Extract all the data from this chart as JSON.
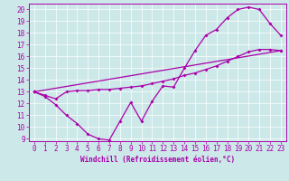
{
  "xlabel": "Windchill (Refroidissement éolien,°C)",
  "background_color": "#cce8e8",
  "grid_color": "#ffffff",
  "line_color": "#aa00aa",
  "xlim": [
    -0.5,
    23.5
  ],
  "ylim": [
    8.8,
    20.5
  ],
  "xticks": [
    0,
    1,
    2,
    3,
    4,
    5,
    6,
    7,
    8,
    9,
    10,
    11,
    12,
    13,
    14,
    15,
    16,
    17,
    18,
    19,
    20,
    21,
    22,
    23
  ],
  "yticks": [
    9,
    10,
    11,
    12,
    13,
    14,
    15,
    16,
    17,
    18,
    19,
    20
  ],
  "curve1_x": [
    0,
    1,
    2,
    3,
    4,
    5,
    6,
    7,
    8,
    9,
    10,
    11,
    12,
    13,
    14,
    15,
    16,
    17,
    18,
    19,
    20,
    21,
    22,
    23
  ],
  "curve1_y": [
    13,
    12.6,
    11.9,
    11.0,
    10.3,
    9.4,
    9.0,
    8.9,
    10.5,
    12.1,
    10.5,
    12.2,
    13.5,
    13.4,
    15.0,
    16.5,
    17.8,
    18.3,
    19.3,
    20.0,
    20.2,
    20.0,
    18.8,
    17.8
  ],
  "curve2_x": [
    0,
    1,
    2,
    3,
    4,
    5,
    6,
    7,
    8,
    9,
    10,
    11,
    12,
    13,
    14,
    15,
    16,
    17,
    18,
    19,
    20,
    21,
    22,
    23
  ],
  "curve2_y": [
    13,
    12.7,
    12.4,
    13.0,
    13.1,
    13.1,
    13.2,
    13.2,
    13.3,
    13.4,
    13.5,
    13.7,
    13.9,
    14.1,
    14.4,
    14.6,
    14.9,
    15.2,
    15.6,
    16.0,
    16.4,
    16.6,
    16.6,
    16.5
  ],
  "curve3_x": [
    0,
    23
  ],
  "curve3_y": [
    13,
    16.5
  ],
  "markersize": 2.0,
  "linewidth": 0.9,
  "tick_fontsize": 5.5,
  "xlabel_fontsize": 5.5
}
